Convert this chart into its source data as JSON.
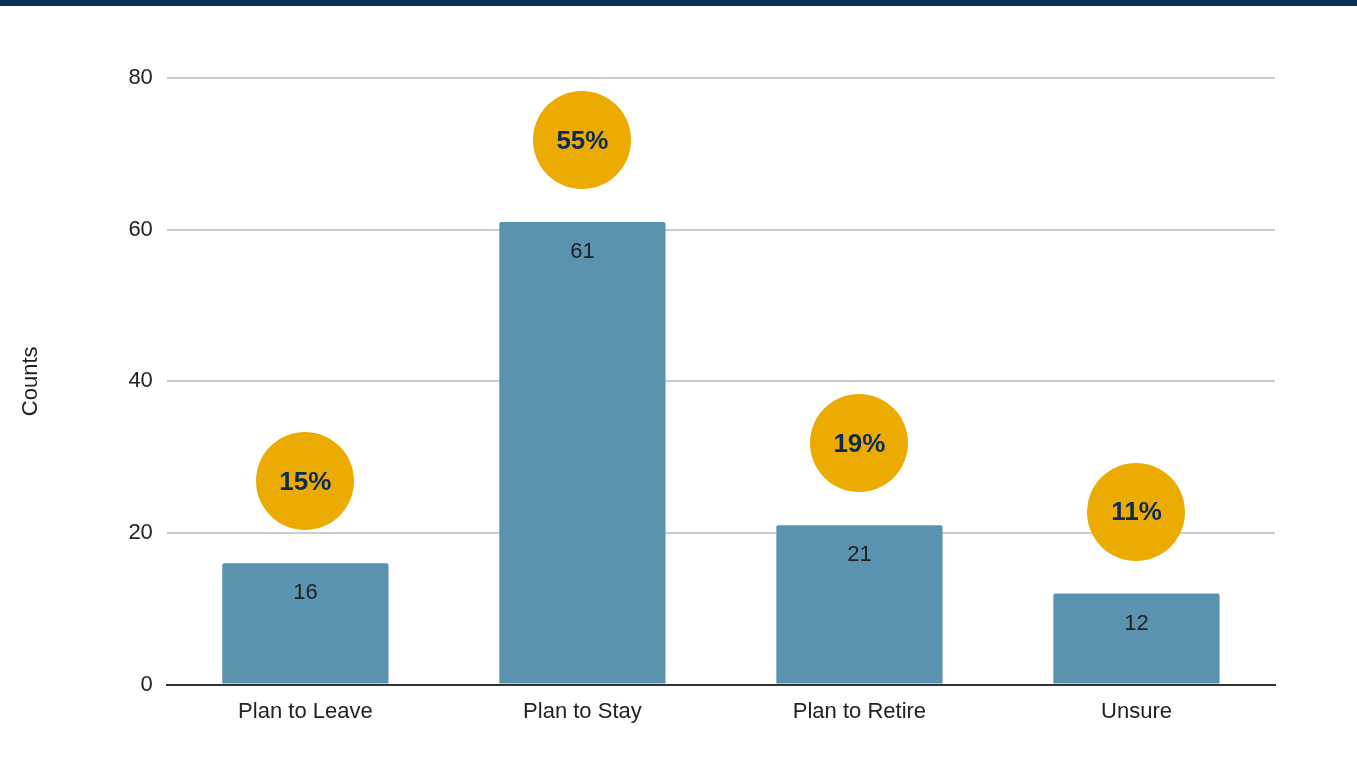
{
  "chart_data": {
    "type": "bar",
    "ylabel": "Counts",
    "categories": [
      "Plan to Leave",
      "Plan to Stay",
      "Plan to Retire",
      "Unsure"
    ],
    "values": [
      16,
      61,
      21,
      12
    ],
    "color": "#5a93b0",
    "ylim": [
      0,
      80
    ],
    "yticks": [
      0,
      20,
      40,
      60,
      80
    ],
    "grid": "y",
    "data_labels": true,
    "annotations": [
      "15%",
      "55%",
      "19%",
      "11%"
    ]
  }
}
